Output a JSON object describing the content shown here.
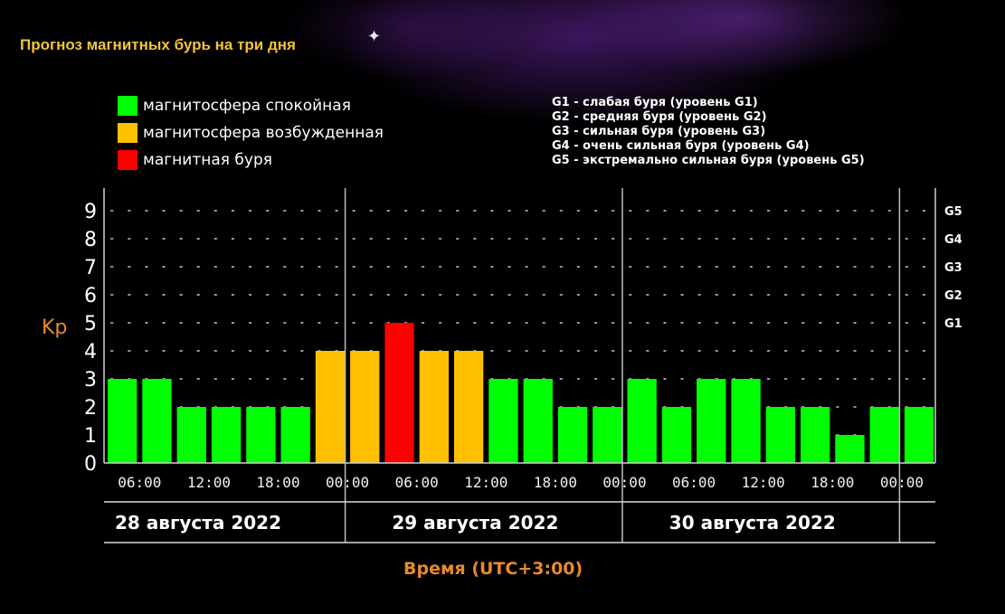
{
  "title": "Прогноз магнитных бурь на три дня",
  "legend": [
    {
      "label": "магнитосфера спокойная",
      "color": "#00ff00"
    },
    {
      "label": "магнитосфера возбужденная",
      "color": "#ffc000"
    },
    {
      "label": "магнитная буря",
      "color": "#ff0000"
    }
  ],
  "g_levels": [
    "G1 - слабая буря (уровень G1)",
    "G2 - средняя буря (уровень G2)",
    "G3 - сильная буря (уровень G3)",
    "G4 - очень сильная буря (уровень G4)",
    "G5 - экстремально сильная буря (уровень G5)"
  ],
  "chart_data": {
    "type": "bar",
    "title": "Прогноз магнитных бурь на три дня",
    "xlabel": "Время (UTC+3:00)",
    "ylabel": "Kp",
    "ylim": [
      0,
      9
    ],
    "yticks": [
      "0",
      "1",
      "2",
      "3",
      "4",
      "5",
      "6",
      "7",
      "8",
      "9"
    ],
    "right_ticks": [
      {
        "kp": 5,
        "label": "G1"
      },
      {
        "kp": 6,
        "label": "G2"
      },
      {
        "kp": 7,
        "label": "G3"
      },
      {
        "kp": 8,
        "label": "G4"
      },
      {
        "kp": 9,
        "label": "G5"
      }
    ],
    "time_ticks": [
      "06:00",
      "12:00",
      "18:00",
      "00:00",
      "06:00",
      "12:00",
      "18:00",
      "00:00",
      "06:00",
      "12:00",
      "18:00",
      "00:00"
    ],
    "days": [
      "28 августа 2022",
      "29 августа 2022",
      "30 августа 2022"
    ],
    "values": [
      3,
      3,
      2,
      2,
      2,
      2,
      4,
      4,
      5,
      4,
      4,
      3,
      3,
      2,
      2,
      3,
      2,
      3,
      3,
      2,
      2,
      1,
      2,
      2
    ],
    "colors": {
      "quiet": "#00ff00",
      "active": "#ffc000",
      "storm": "#ff0000"
    },
    "grid": true,
    "legend_position": "top-left"
  }
}
